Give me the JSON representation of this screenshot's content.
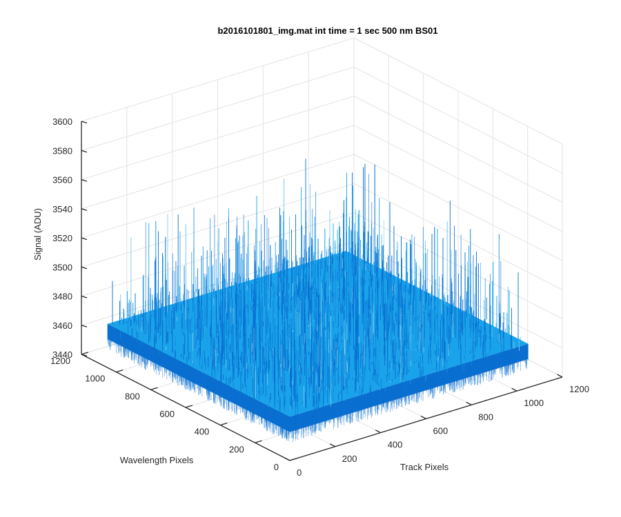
{
  "chart_data": {
    "type": "surface",
    "title": "b2016101801_img.mat int time = 1 sec  500 nm BS01",
    "xlabel": "Track Pixels",
    "ylabel": "Wavelength Pixels",
    "zlabel": "Signal (ADU)",
    "xlim": [
      0,
      1200
    ],
    "ylim": [
      0,
      1200
    ],
    "zlim": [
      3440,
      3600
    ],
    "x_ticks": [
      "0",
      "200",
      "400",
      "600",
      "800",
      "1000",
      "1200"
    ],
    "y_ticks": [
      "0",
      "200",
      "400",
      "600",
      "800",
      "1000",
      "1200"
    ],
    "z_ticks": [
      "3440",
      "3460",
      "3480",
      "3500",
      "3520",
      "3540",
      "3560",
      "3580",
      "3600"
    ],
    "x_tick_values": [
      0,
      200,
      400,
      600,
      800,
      1000,
      1200
    ],
    "y_tick_values": [
      0,
      200,
      400,
      600,
      800,
      1000,
      1200
    ],
    "z_tick_values": [
      3440,
      3460,
      3480,
      3500,
      3520,
      3540,
      3560,
      3580,
      3600
    ],
    "surface": {
      "x_range": [
        0,
        1050
      ],
      "y_range": [
        0,
        1050
      ],
      "mean_signal": 3470,
      "noise_min": 3455,
      "noise_max": 3540
    },
    "grid": true,
    "view": "3d-isometric",
    "colors": {
      "surface_base": "#0a6fd0",
      "surface_top": "#1aa3ea",
      "surface_spike": "#7ec8e8",
      "axis": "#262626",
      "grid": "#e3e3e3",
      "background": "#ffffff"
    }
  }
}
